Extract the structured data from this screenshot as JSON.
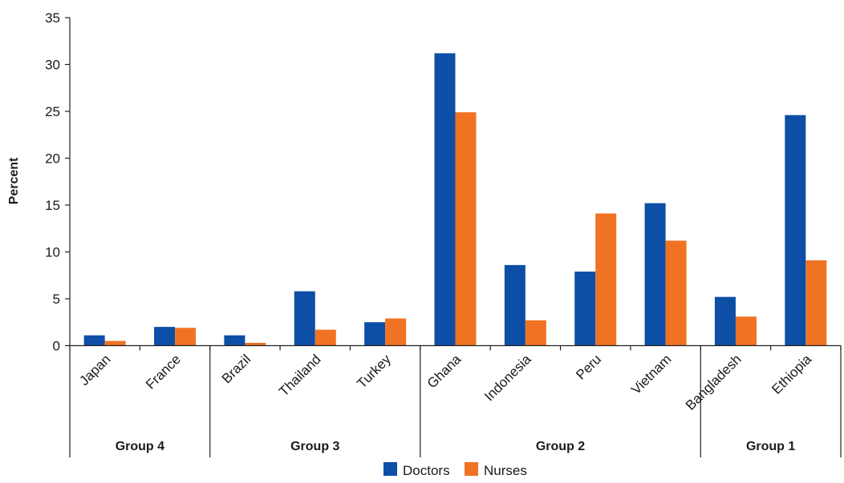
{
  "chart_data": {
    "type": "bar",
    "title": "",
    "xlabel": "",
    "ylabel": "Percent",
    "ylim": [
      0,
      35
    ],
    "yticks": [
      0,
      5,
      10,
      15,
      20,
      25,
      30,
      35
    ],
    "categories": [
      "Japan",
      "France",
      "Brazil",
      "Thailand",
      "Turkey",
      "Ghana",
      "Indonesia",
      "Peru",
      "Vietnam",
      "Bangladesh",
      "Ethiopia"
    ],
    "groups": [
      {
        "name": "Group 4",
        "categories": [
          "Japan",
          "France"
        ]
      },
      {
        "name": "Group 3",
        "categories": [
          "Brazil",
          "Thailand",
          "Turkey"
        ]
      },
      {
        "name": "Group 2",
        "categories": [
          "Ghana",
          "Indonesia",
          "Peru",
          "Vietnam"
        ]
      },
      {
        "name": "Group 1",
        "categories": [
          "Bangladesh",
          "Ethiopia"
        ]
      }
    ],
    "series": [
      {
        "name": "Doctors",
        "color": "#0d4ea6",
        "values": [
          1.1,
          2.0,
          1.1,
          5.8,
          2.5,
          31.2,
          8.6,
          7.9,
          15.2,
          5.2,
          24.6
        ]
      },
      {
        "name": "Nurses",
        "color": "#f07323",
        "values": [
          0.5,
          1.9,
          0.3,
          1.7,
          2.9,
          24.9,
          2.7,
          14.1,
          11.2,
          3.1,
          9.1
        ]
      }
    ],
    "legend_position": "bottom-center",
    "grid": false
  }
}
